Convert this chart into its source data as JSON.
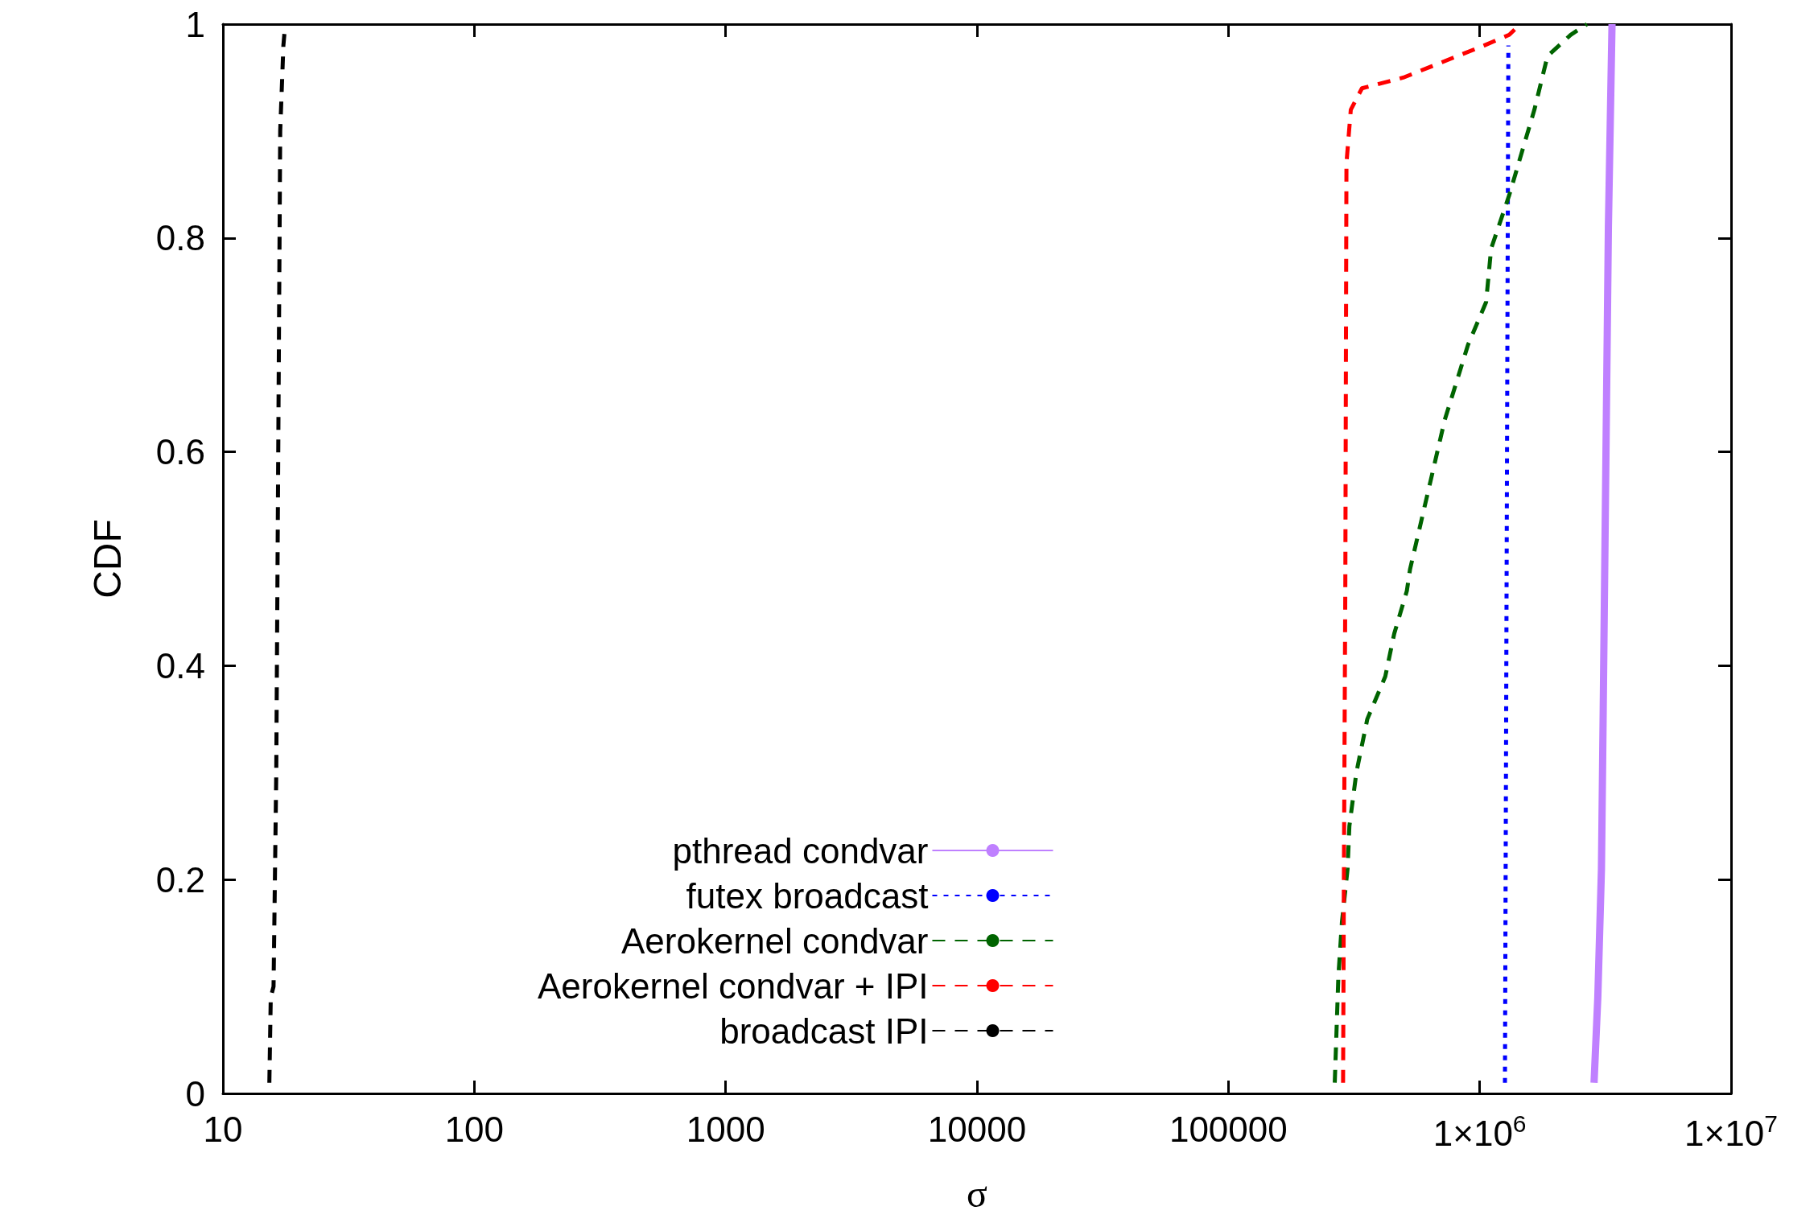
{
  "chart_data": {
    "type": "line",
    "xlabel": "σ",
    "ylabel": "CDF",
    "log": "x",
    "grid": false,
    "legend": "bottom",
    "marker": "none",
    "xlim": [
      10,
      10000000
    ],
    "ylim": [
      0,
      1
    ],
    "xticks": [
      10,
      100,
      1000,
      10000,
      100000,
      {
        "value": 1000000,
        "label": "1×10$^{6}$"
      },
      {
        "value": 10000000,
        "label": "1×10$^{7}$"
      }
    ],
    "yticks": [
      0,
      0.2,
      0.4,
      0.6,
      0.8,
      1
    ],
    "series": [
      {
        "name": "pthread condvar",
        "color": "#bf80ff",
        "line_style": "solid",
        "x": [
          2850000,
          2950000,
          3050000,
          3100000,
          3250000,
          3360000
        ],
        "values": [
          0.01,
          0.09,
          0.21,
          0.36,
          0.81,
          1
        ]
      },
      {
        "name": "futex broadcast",
        "color": "#0000ff",
        "line_style": "dotted",
        "x": [
          1260000,
          1300000
        ],
        "values": [
          0.01,
          0.98
        ]
      },
      {
        "name": "Aerokernel condvar",
        "color": "#006400",
        "line_style": "dashed",
        "x": [
          265000,
          274000,
          283000,
          298000,
          303000,
          323000,
          357000,
          421000,
          457000,
          513000,
          528000,
          726000,
          898000,
          1060000,
          1110000,
          1310000,
          1470000,
          1650000,
          1860000,
          2300000,
          2670000
        ],
        "values": [
          0.01,
          0.11,
          0.16,
          0.21,
          0.25,
          0.3,
          0.35,
          0.39,
          0.43,
          0.47,
          0.49,
          0.63,
          0.7,
          0.74,
          0.79,
          0.84,
          0.88,
          0.92,
          0.97,
          0.99,
          1
        ]
      },
      {
        "name": "Aerokernel condvar + IPI",
        "color": "#ff0000",
        "line_style": "dashed",
        "x": [
          286000,
          288000,
          292000,
          295000,
          307000,
          340000,
          496000,
          1040000,
          1310000,
          1450000
        ],
        "values": [
          0.01,
          0.19,
          0.48,
          0.87,
          0.92,
          0.94,
          0.95,
          0.98,
          0.99,
          1
        ]
      },
      {
        "name": "broadcast IPI",
        "color": "#000000",
        "line_style": "dashed",
        "x": [
          15.3,
          15.5,
          15.9,
          16.3,
          16.6,
          16.9,
          17.4,
          17.7
        ],
        "values": [
          0.01,
          0.09,
          0.1,
          0.3,
          0.6,
          0.9,
          0.98,
          1
        ]
      }
    ]
  }
}
